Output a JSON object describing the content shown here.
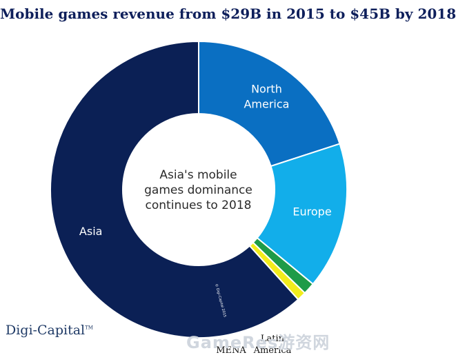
{
  "title": "Mobile games revenue from $29B in 2015 to $45B by 2018",
  "center_text": [
    "Asia's mobile",
    "games dominance",
    "continues to 2018"
  ],
  "logo": "Digi-Capital",
  "logo_tm": "TM",
  "copyright_mark": "© Digi-Capital 2015",
  "watermark": "GameRes游资网",
  "colors": {
    "asia": "#0b2055",
    "north_america": "#0a6fc2",
    "europe": "#12aeea",
    "latin_america": "#1e9b48",
    "mena": "#f2ec1c"
  },
  "chart_data": {
    "type": "pie",
    "subtype": "donut",
    "title": "Mobile games revenue from $29B in 2015 to $45B by 2018",
    "slices": [
      {
        "label": "North America",
        "label_lines": [
          "North",
          "America"
        ],
        "value": 20.0,
        "color": "#0a6fc2",
        "label_inside": true
      },
      {
        "label": "Europe",
        "label_lines": [
          "Europe"
        ],
        "value": 16.0,
        "color": "#12aeea",
        "label_inside": true
      },
      {
        "label": "Latin America",
        "label_lines": [
          "Latin",
          "America"
        ],
        "value": 1.3,
        "color": "#1e9b48",
        "label_inside": false
      },
      {
        "label": "MENA",
        "label_lines": [
          "MENA"
        ],
        "value": 1.0,
        "color": "#f2ec1c",
        "label_inside": false
      },
      {
        "label": "Asia",
        "label_lines": [
          "Asia"
        ],
        "value": 61.7,
        "color": "#0b2055",
        "label_inside": true
      }
    ],
    "units": "percent (estimated)"
  }
}
